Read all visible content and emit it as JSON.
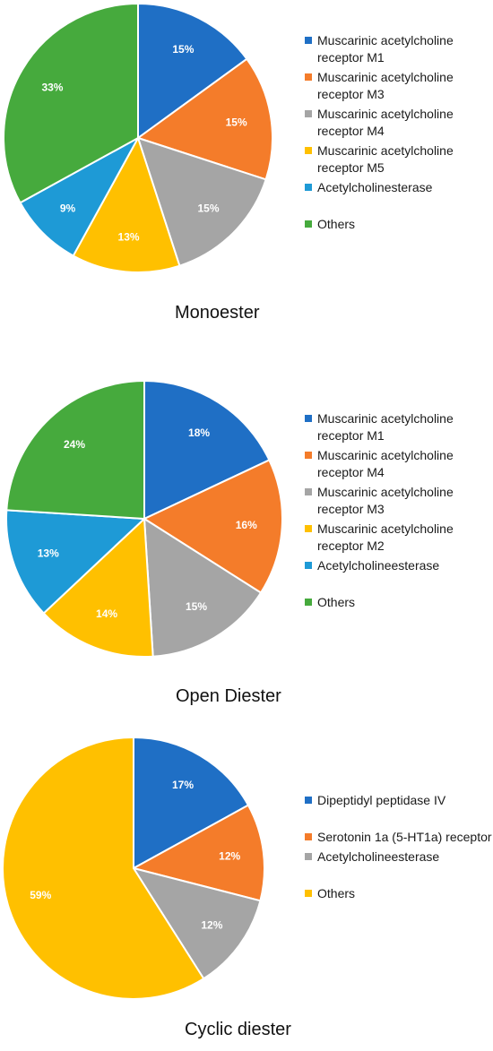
{
  "chart_data": [
    {
      "type": "pie",
      "title": "Monoester",
      "slices": [
        {
          "label": "Muscarinic acetylcholine receptor M1",
          "value": 15,
          "display": "15%",
          "color": "#1F6FC5"
        },
        {
          "label": "Muscarinic acetylcholine receptor M3",
          "value": 15,
          "display": "15%",
          "color": "#F47C2A"
        },
        {
          "label": "Muscarinic acetylcholine receptor M4",
          "value": 15,
          "display": "15%",
          "color": "#A5A5A5"
        },
        {
          "label": "Muscarinic acetylcholine receptor M5",
          "value": 13,
          "display": "13%",
          "color": "#FFC000"
        },
        {
          "label": "Acetylcholinesterase",
          "value": 9,
          "display": "9%",
          "color": "#1E9AD6"
        },
        {
          "label": "Others",
          "value": 33,
          "display": "33%",
          "color": "#46AA3D"
        }
      ],
      "legend_position": "right"
    },
    {
      "type": "pie",
      "title": "Open Diester",
      "slices": [
        {
          "label": "Muscarinic acetylcholine receptor M1",
          "value": 18,
          "display": "18%",
          "color": "#1F6FC5"
        },
        {
          "label": "Muscarinic acetylcholine receptor M4",
          "value": 16,
          "display": "16%",
          "color": "#F47C2A"
        },
        {
          "label": "Muscarinic acetylcholine receptor M3",
          "value": 15,
          "display": "15%",
          "color": "#A5A5A5"
        },
        {
          "label": "Muscarinic acetylcholine receptor M2",
          "value": 14,
          "display": "14%",
          "color": "#FFC000"
        },
        {
          "label": "Acetylcholineesterase",
          "value": 13,
          "display": "13%",
          "color": "#1E9AD6"
        },
        {
          "label": "Others",
          "value": 24,
          "display": "24%",
          "color": "#46AA3D"
        }
      ],
      "legend_position": "right"
    },
    {
      "type": "pie",
      "title": "Cyclic diester",
      "slices": [
        {
          "label": "Dipeptidyl peptidase IV",
          "value": 17,
          "display": "17%",
          "color": "#1F6FC5"
        },
        {
          "label": "Serotonin 1a (5-HT1a) receptor",
          "value": 12,
          "display": "12%",
          "color": "#F47C2A"
        },
        {
          "label": "Acetylcholineesterase",
          "value": 12,
          "display": "12%",
          "color": "#A5A5A5"
        },
        {
          "label": "Others",
          "value": 59,
          "display": "59%",
          "color": "#FFC000"
        }
      ],
      "legend_position": "right"
    }
  ]
}
